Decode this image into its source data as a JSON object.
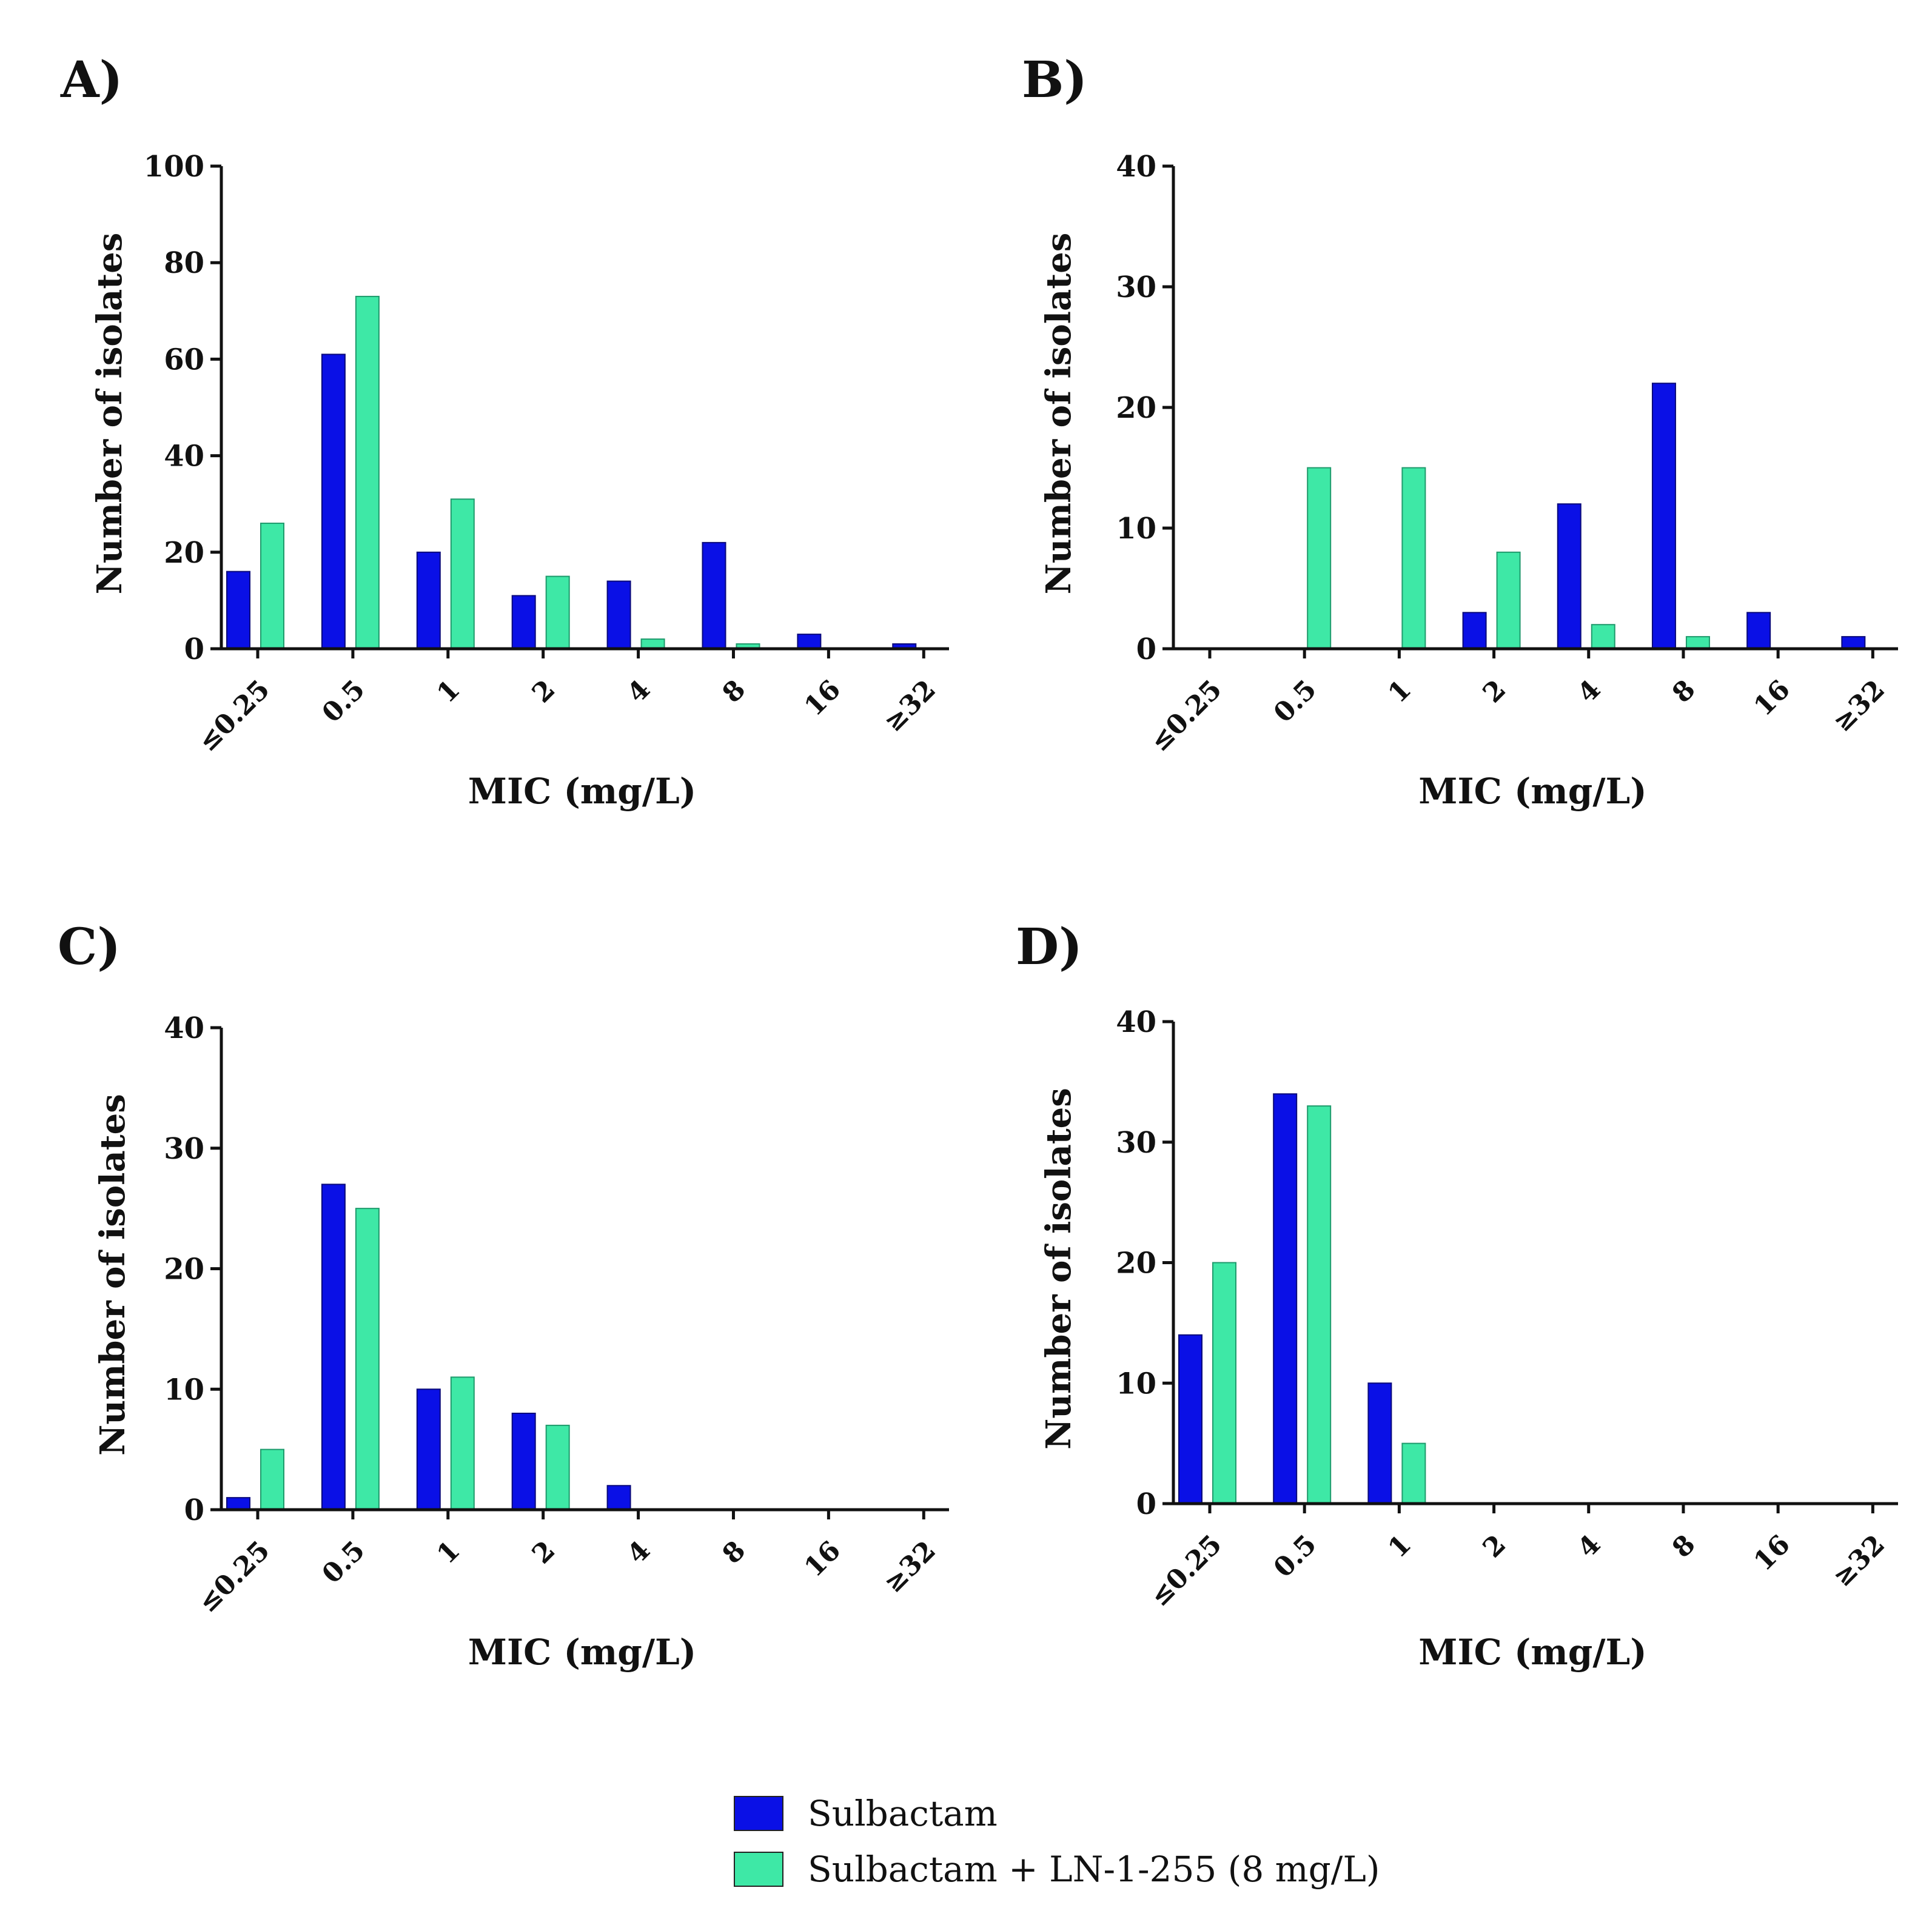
{
  "colors": {
    "sulbactam": "#0a10e6",
    "combo": "#3ee8a6",
    "axis": "#111111",
    "text": "#111111"
  },
  "chart_data": [
    {
      "type": "bar",
      "panel": "A)",
      "categories": [
        "≤0.25",
        "0.5",
        "1",
        "2",
        "4",
        "8",
        "16",
        "≥32"
      ],
      "series": [
        {
          "name": "Sulbactam",
          "values": [
            16,
            61,
            20,
            11,
            14,
            22,
            3,
            1
          ]
        },
        {
          "name": "Sulbactam + LN-1-255 (8 mg/L)",
          "values": [
            26,
            73,
            31,
            15,
            2,
            1,
            0,
            0
          ]
        }
      ],
      "xlabel": "MIC (mg/L)",
      "ylabel": "Number of isolates",
      "ylim": [
        0,
        100
      ],
      "yticks": [
        0,
        20,
        40,
        60,
        80,
        100
      ]
    },
    {
      "type": "bar",
      "panel": "B)",
      "categories": [
        "≤0.25",
        "0.5",
        "1",
        "2",
        "4",
        "8",
        "16",
        "≥32"
      ],
      "series": [
        {
          "name": "Sulbactam",
          "values": [
            0,
            0,
            0,
            3,
            12,
            22,
            3,
            1
          ]
        },
        {
          "name": "Sulbactam + LN-1-255 (8 mg/L)",
          "values": [
            0,
            15,
            15,
            8,
            2,
            1,
            0,
            0
          ]
        }
      ],
      "xlabel": "MIC (mg/L)",
      "ylabel": "Number of isolates",
      "ylim": [
        0,
        40
      ],
      "yticks": [
        0,
        10,
        20,
        30,
        40
      ]
    },
    {
      "type": "bar",
      "panel": "C)",
      "categories": [
        "≤0.25",
        "0.5",
        "1",
        "2",
        "4",
        "8",
        "16",
        "≥32"
      ],
      "series": [
        {
          "name": "Sulbactam",
          "values": [
            1,
            27,
            10,
            8,
            2,
            0,
            0,
            0
          ]
        },
        {
          "name": "Sulbactam + LN-1-255 (8 mg/L)",
          "values": [
            5,
            25,
            11,
            7,
            0,
            0,
            0,
            0
          ]
        }
      ],
      "xlabel": "MIC (mg/L)",
      "ylabel": "Number of isolates",
      "ylim": [
        0,
        40
      ],
      "yticks": [
        0,
        10,
        20,
        30,
        40
      ]
    },
    {
      "type": "bar",
      "panel": "D)",
      "categories": [
        "≤0.25",
        "0.5",
        "1",
        "2",
        "4",
        "8",
        "16",
        "≥32"
      ],
      "series": [
        {
          "name": "Sulbactam",
          "values": [
            14,
            34,
            10,
            0,
            0,
            0,
            0,
            0
          ]
        },
        {
          "name": "Sulbactam + LN-1-255 (8 mg/L)",
          "values": [
            20,
            33,
            5,
            0,
            0,
            0,
            0,
            0
          ]
        }
      ],
      "xlabel": "MIC (mg/L)",
      "ylabel": "Number of isolates",
      "ylim": [
        0,
        40
      ],
      "yticks": [
        0,
        10,
        20,
        30,
        40
      ]
    }
  ],
  "legend": {
    "items": [
      {
        "label": "Sulbactam",
        "color": "#0a10e6"
      },
      {
        "label": "Sulbactam + LN-1-255 (8 mg/L)",
        "color": "#3ee8a6"
      }
    ]
  }
}
